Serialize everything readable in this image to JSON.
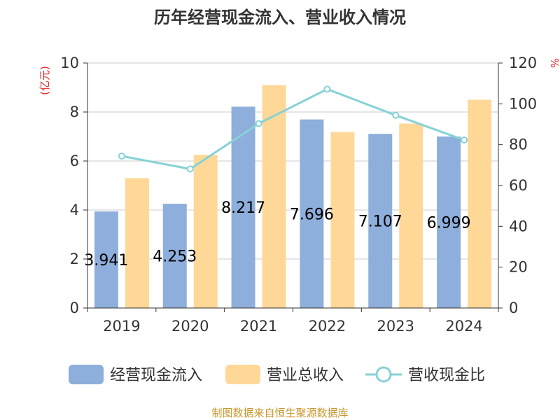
{
  "colors": {
    "cashflow": "#8eaedb",
    "revenue": "#ffd898",
    "ratio": "#86d2d6",
    "unit": "#e8262b",
    "footer": "#c9962b",
    "grid": "#cccccc",
    "axis": "#333333"
  },
  "chart_data": {
    "type": "bar",
    "title": "历年经营现金流入、营业收入情况",
    "categories": [
      "2019",
      "2020",
      "2021",
      "2022",
      "2023",
      "2024"
    ],
    "series": [
      {
        "name": "经营现金流入",
        "type": "bar",
        "axis": "left",
        "values": [
          3.941,
          4.253,
          8.217,
          7.696,
          7.107,
          6.999
        ],
        "labels": [
          "3.941",
          "4.253",
          "8.217",
          "7.696",
          "7.107",
          "6.999"
        ]
      },
      {
        "name": "营业总收入",
        "type": "bar",
        "axis": "left",
        "values": [
          5.3,
          6.25,
          9.1,
          7.18,
          7.53,
          8.5
        ]
      },
      {
        "name": "营收现金比",
        "type": "line",
        "axis": "right",
        "values": [
          74.4,
          68.1,
          90.3,
          107.2,
          94.4,
          82.3
        ]
      }
    ],
    "ylabel": "(亿元)",
    "y2label": "%",
    "ylim": [
      0,
      10
    ],
    "y2lim": [
      0,
      120
    ],
    "yticks": [
      "0",
      "2",
      "4",
      "6",
      "8",
      "10"
    ],
    "y2ticks": [
      "0",
      "20",
      "40",
      "60",
      "80",
      "100",
      "120"
    ],
    "grid": true,
    "legend_position": "bottom"
  },
  "footer": "制图数据来自恒生聚源数据库"
}
